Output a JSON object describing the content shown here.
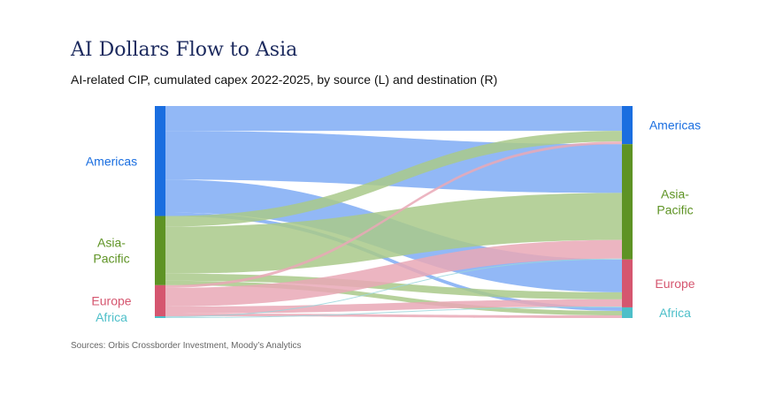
{
  "title": "AI Dollars Flow to Asia",
  "subtitle": "AI-related CIP, cumulated capex 2022-2025, by source (L) and destination (R)",
  "source": "Sources: Orbis Crossborder Investment, Moody’s Analytics",
  "colors": {
    "Americas": "#1a6ee0",
    "Asia-Pacific": "#5e9324",
    "Europe": "#d5566f",
    "Africa": "#4dbfc9"
  },
  "link_colors": {
    "Americas": "#7fabf5",
    "Asia-Pacific": "#a9c98a",
    "Europe": "#e9a8b6",
    "Africa": "#9ad6dc"
  },
  "chart_data": {
    "type": "sankey",
    "sources": [
      {
        "name": "Americas",
        "label_lines": [
          "Americas"
        ]
      },
      {
        "name": "Asia-Pacific",
        "label_lines": [
          "Asia-",
          "Pacific"
        ]
      },
      {
        "name": "Europe",
        "label_lines": [
          "Europe"
        ]
      },
      {
        "name": "Africa",
        "label_lines": [
          "Africa"
        ]
      }
    ],
    "destinations": [
      {
        "name": "Americas",
        "label_lines": [
          "Americas"
        ]
      },
      {
        "name": "Asia-Pacific",
        "label_lines": [
          "Asia-",
          "Pacific"
        ]
      },
      {
        "name": "Europe",
        "label_lines": [
          "Europe"
        ]
      },
      {
        "name": "Africa",
        "label_lines": [
          "Africa"
        ]
      }
    ],
    "flows": [
      {
        "from": "Americas",
        "to": "Americas",
        "value": 28
      },
      {
        "from": "Americas",
        "to": "Asia-Pacific",
        "value": 55
      },
      {
        "from": "Americas",
        "to": "Europe",
        "value": 37
      },
      {
        "from": "Americas",
        "to": "Africa",
        "value": 4
      },
      {
        "from": "Asia-Pacific",
        "to": "Americas",
        "value": 12
      },
      {
        "from": "Asia-Pacific",
        "to": "Asia-Pacific",
        "value": 53
      },
      {
        "from": "Asia-Pacific",
        "to": "Europe",
        "value": 8
      },
      {
        "from": "Asia-Pacific",
        "to": "Africa",
        "value": 5
      },
      {
        "from": "Europe",
        "to": "Americas",
        "value": 3
      },
      {
        "from": "Europe",
        "to": "Asia-Pacific",
        "value": 21
      },
      {
        "from": "Europe",
        "to": "Europe",
        "value": 8
      },
      {
        "from": "Europe",
        "to": "Africa",
        "value": 3
      },
      {
        "from": "Africa",
        "to": "Asia-Pacific",
        "value": 1
      },
      {
        "from": "Africa",
        "to": "Europe",
        "value": 1
      }
    ]
  }
}
